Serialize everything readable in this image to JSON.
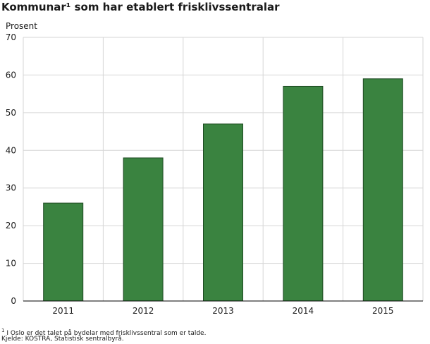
{
  "chart_data": {
    "type": "bar",
    "title": "Kommunar¹ som har etablert frisklivssentralar",
    "ylabel": "Prosent",
    "xlabel": "",
    "categories": [
      "2011",
      "2012",
      "2013",
      "2014",
      "2015"
    ],
    "values": [
      26,
      38,
      47,
      57,
      59
    ],
    "ylim": [
      0,
      70
    ],
    "yticks": [
      0,
      10,
      20,
      30,
      40,
      50,
      60,
      70
    ],
    "grid": true,
    "bar_color": "#3a8340",
    "bar_stroke": "#1e4a22"
  },
  "footnotes": {
    "note_marker": "1",
    "note_text": "I Oslo er det talet på bydelar med frisklivssentral som er talde.",
    "source": "Kjelde: KOSTRA, Statistisk sentralbyrå."
  }
}
